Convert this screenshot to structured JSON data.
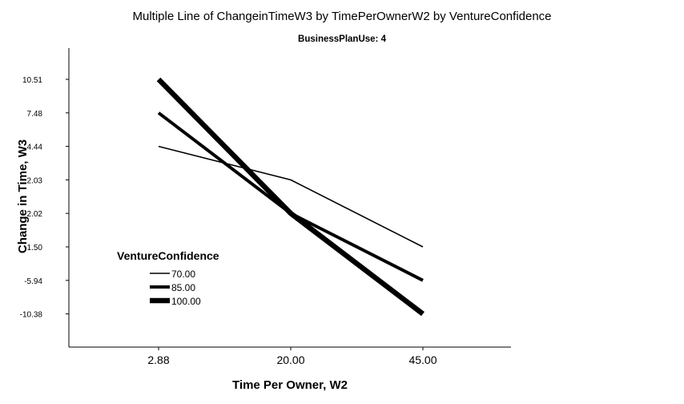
{
  "chart_data": {
    "type": "line",
    "title": "Multiple Line of ChangeinTimeW3 by TimePerOwnerW2 by VentureConfidence",
    "subtitle": "BusinessPlanUse: 4",
    "xlabel": "Time Per Owner, W2",
    "ylabel": "Change in Time, W3",
    "categories": [
      "2.88",
      "20.00",
      "45.00"
    ],
    "y_ticks": [
      "10.51",
      "7.48",
      "4.44",
      "2.03",
      "2.02",
      "-1.50",
      "-5.94",
      "-10.38"
    ],
    "legend_title": "VentureConfidence",
    "legend_position": "left-middle",
    "grid": false,
    "series": [
      {
        "name": "70.00",
        "values": [
          4.44,
          2.03,
          -1.5
        ],
        "line_weight": "thin"
      },
      {
        "name": "85.00",
        "values": [
          7.48,
          2.02,
          -5.94
        ],
        "line_weight": "medium"
      },
      {
        "name": "100.00",
        "values": [
          10.51,
          2.02,
          -10.38
        ],
        "line_weight": "thick"
      }
    ]
  }
}
